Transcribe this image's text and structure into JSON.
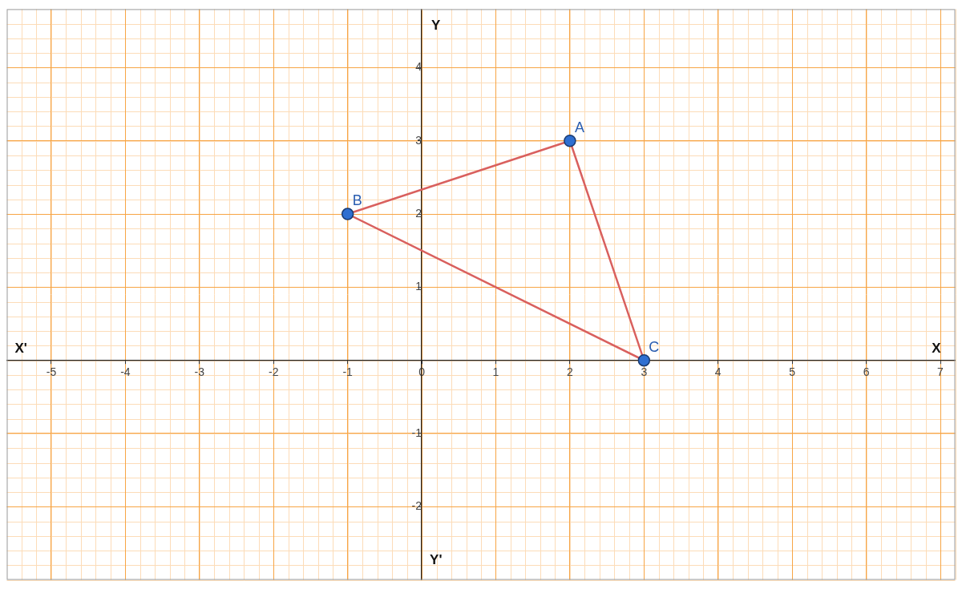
{
  "chart_data": {
    "type": "polygon",
    "x": [
      2,
      -1,
      3
    ],
    "y": [
      3,
      2,
      0
    ],
    "point_labels": [
      "A",
      "B",
      "C"
    ],
    "color": "#d9605e",
    "colors": [
      "#2f6fd1",
      "#2f6fd1",
      "#2f6fd1"
    ],
    "marker": "circle",
    "line_style": "solid",
    "axis_labels": {
      "x": "X",
      "x_negative": "X'",
      "y": "Y",
      "y_negative": "Y'"
    },
    "xlim": [
      -5.6,
      7.2
    ],
    "ylim": [
      -3,
      4.8
    ],
    "xticks": [
      -5,
      -4,
      -3,
      -2,
      -1,
      0,
      1,
      2,
      3,
      4,
      5,
      6,
      7
    ],
    "yticks": [
      -2,
      -1,
      1,
      2,
      3,
      4
    ],
    "grid": true
  }
}
